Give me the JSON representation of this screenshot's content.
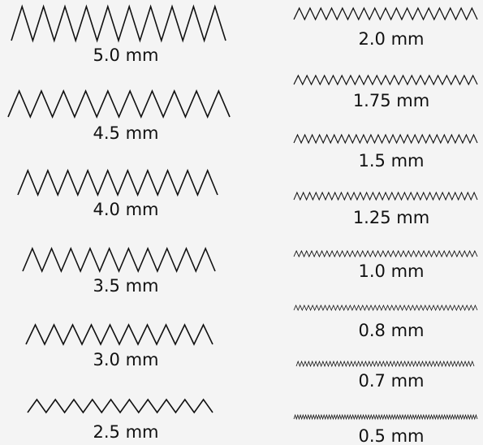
{
  "colors": {
    "background": "#f4f4f4",
    "line": "#111111"
  },
  "columns": [
    {
      "items": [
        {
          "label": "5.0 mm"
        },
        {
          "label": "4.5 mm"
        },
        {
          "label": "4.0 mm"
        },
        {
          "label": "3.5 mm"
        },
        {
          "label": "3.0 mm"
        },
        {
          "label": "2.5 mm"
        }
      ]
    },
    {
      "items": [
        {
          "label": "2.0 mm"
        },
        {
          "label": "1.75 mm"
        },
        {
          "label": "1.5 mm"
        },
        {
          "label": "1.25 mm"
        },
        {
          "label": "1.0 mm"
        },
        {
          "label": "0.8 mm"
        },
        {
          "label": "0.7 mm"
        },
        {
          "label": "0.5 mm"
        }
      ]
    }
  ]
}
